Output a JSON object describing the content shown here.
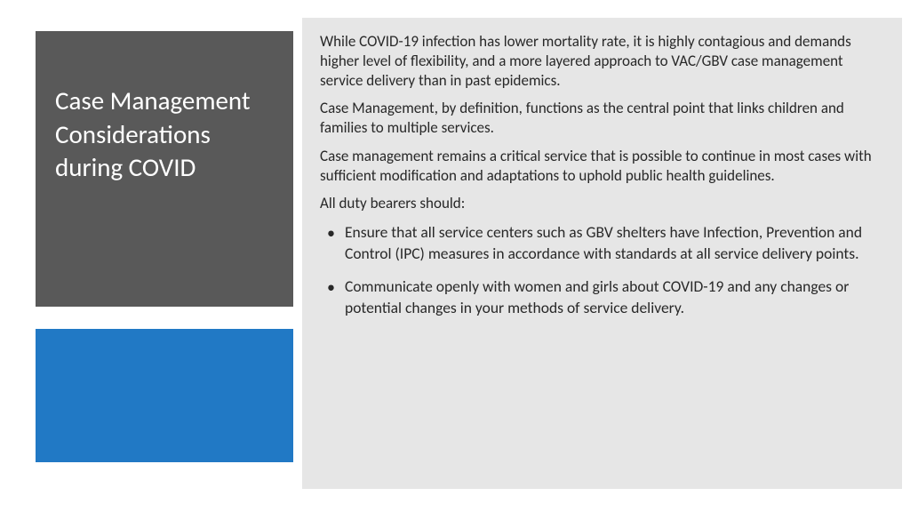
{
  "slide": {
    "title": "Case Management Considerations during COVID",
    "title_box": {
      "background_color": "#595959",
      "text_color": "#ffffff",
      "font_size": 29
    },
    "accent_box": {
      "background_color": "#2179c5"
    },
    "content_box": {
      "background_color": "#e6e6e6",
      "text_color": "#282828",
      "font_size": 17
    },
    "paragraphs": [
      "While COVID-19 infection has lower mortality rate, it is highly contagious and demands higher level of flexibility, and a more layered approach to VAC/GBV case management service delivery than in past epidemics.",
      "Case Management, by definition, functions as the central point that links children and families to multiple services.",
      "Case management remains a critical service that is possible to continue in most cases with sufficient modification and adaptations to uphold public health guidelines.",
      "All duty bearers should:"
    ],
    "bullets": [
      "Ensure that all service centers such as GBV shelters have Infection, Prevention and Control (IPC) measures in accordance with standards at all service delivery points.",
      "Communicate openly with women and girls about COVID-19 and any changes or potential changes in your methods of service delivery."
    ]
  }
}
